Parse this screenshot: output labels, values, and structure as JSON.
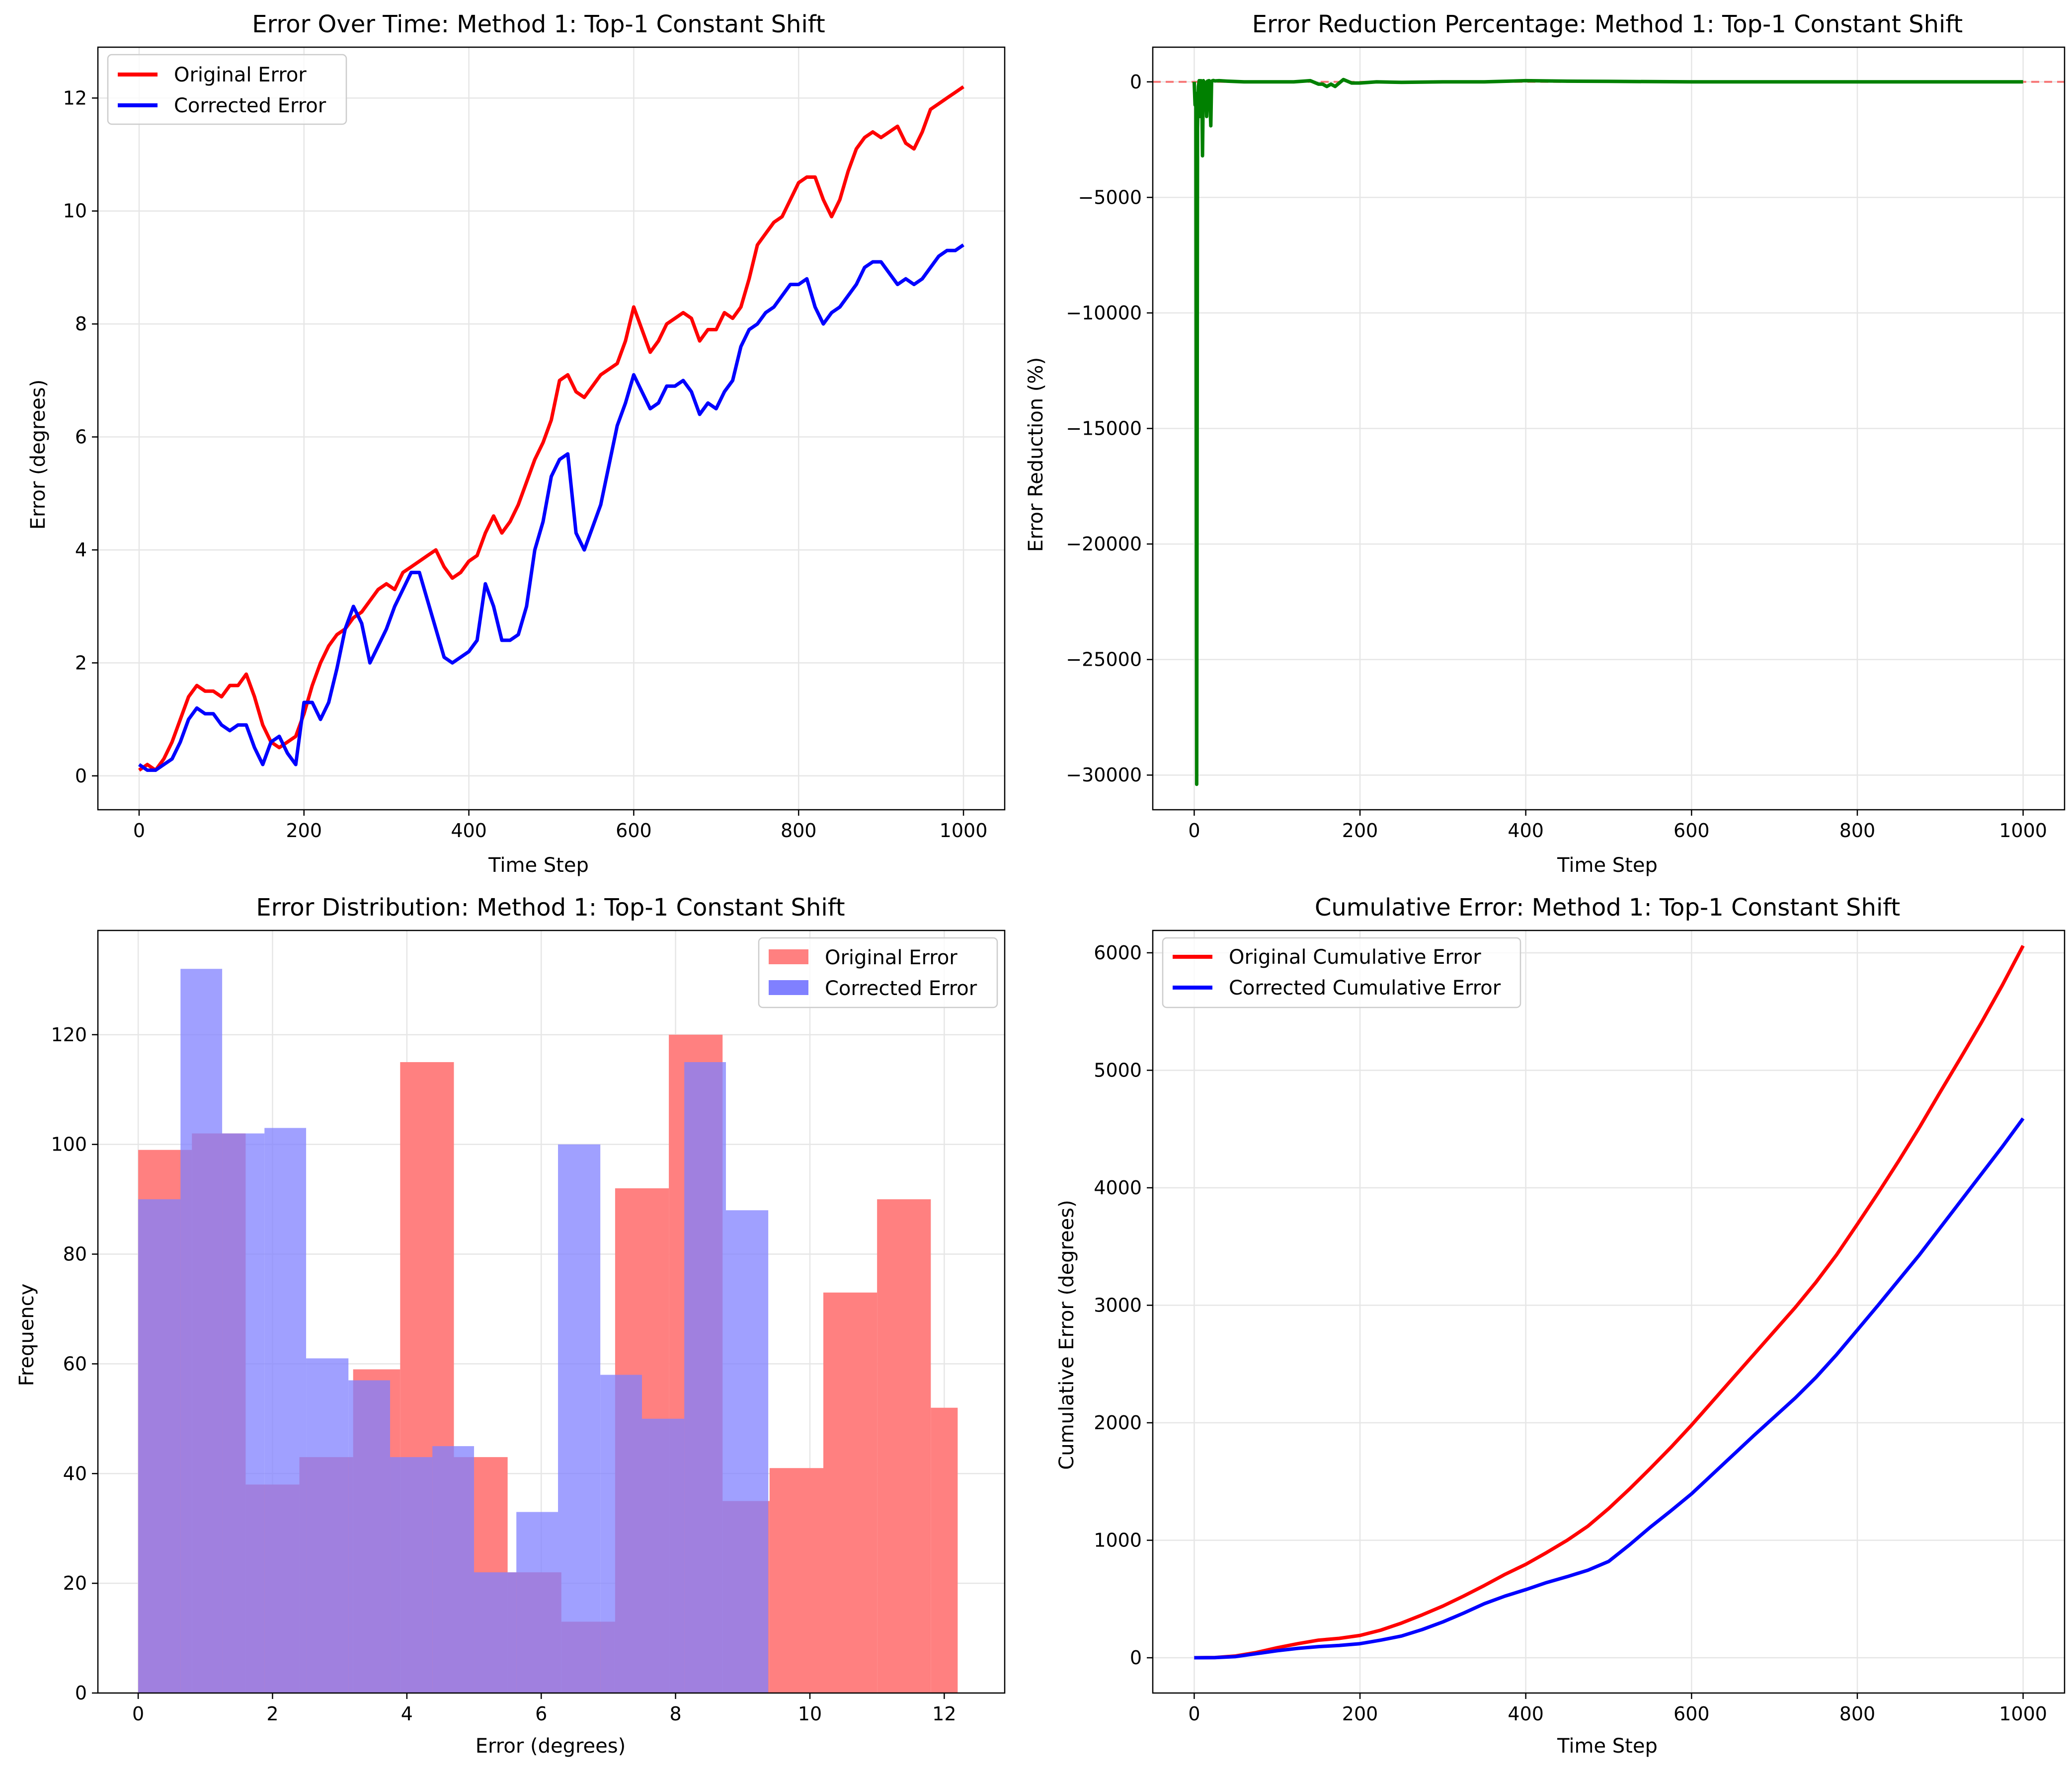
{
  "colors": {
    "original": "#ff0000",
    "corrected": "#0000ff",
    "reduction": "#008000",
    "zero_line": "#ff0000",
    "hist_original": "#ff8080",
    "hist_corrected": "#8080ff",
    "hist_overlap": "#7f3fbf",
    "grid": "#e6e6e6"
  },
  "chart_data": [
    {
      "id": "error_over_time",
      "type": "line",
      "title": "Error Over Time: Method 1: Top-1 Constant Shift",
      "xlabel": "Time Step",
      "ylabel": "Error (degrees)",
      "xlim": [
        -50,
        1050
      ],
      "ylim": [
        -0.6,
        12.9
      ],
      "xticks": [
        0,
        200,
        400,
        600,
        800,
        1000
      ],
      "yticks": [
        0,
        2,
        4,
        6,
        8,
        10,
        12
      ],
      "grid": true,
      "legend": "upper left",
      "series": [
        {
          "name": "Original Error",
          "color": "#ff0000",
          "x": [
            0,
            10,
            20,
            30,
            40,
            50,
            60,
            70,
            80,
            90,
            100,
            110,
            120,
            130,
            140,
            150,
            160,
            170,
            180,
            190,
            200,
            210,
            220,
            230,
            240,
            250,
            260,
            270,
            280,
            290,
            300,
            310,
            320,
            330,
            340,
            350,
            360,
            370,
            380,
            390,
            400,
            410,
            420,
            430,
            440,
            450,
            460,
            470,
            480,
            490,
            500,
            510,
            520,
            530,
            540,
            550,
            560,
            570,
            580,
            590,
            600,
            610,
            620,
            630,
            640,
            650,
            660,
            670,
            680,
            690,
            700,
            710,
            720,
            730,
            740,
            750,
            760,
            770,
            780,
            790,
            800,
            810,
            820,
            830,
            840,
            850,
            860,
            870,
            880,
            890,
            900,
            910,
            920,
            930,
            940,
            950,
            960,
            970,
            980,
            990,
            1000
          ],
          "values": [
            0.1,
            0.2,
            0.1,
            0.3,
            0.6,
            1.0,
            1.4,
            1.6,
            1.5,
            1.5,
            1.4,
            1.6,
            1.6,
            1.8,
            1.4,
            0.9,
            0.6,
            0.5,
            0.6,
            0.7,
            1.1,
            1.6,
            2.0,
            2.3,
            2.5,
            2.6,
            2.8,
            2.9,
            3.1,
            3.3,
            3.4,
            3.3,
            3.6,
            3.7,
            3.8,
            3.9,
            4.0,
            3.7,
            3.5,
            3.6,
            3.8,
            3.9,
            4.3,
            4.6,
            4.3,
            4.5,
            4.8,
            5.2,
            5.6,
            5.9,
            6.3,
            7.0,
            7.1,
            6.8,
            6.7,
            6.9,
            7.1,
            7.2,
            7.3,
            7.7,
            8.3,
            7.9,
            7.5,
            7.7,
            8.0,
            8.1,
            8.2,
            8.1,
            7.7,
            7.9,
            7.9,
            8.2,
            8.1,
            8.3,
            8.8,
            9.4,
            9.6,
            9.8,
            9.9,
            10.2,
            10.5,
            10.6,
            10.6,
            10.2,
            9.9,
            10.2,
            10.7,
            11.1,
            11.3,
            11.4,
            11.3,
            11.4,
            11.5,
            11.2,
            11.1,
            11.4,
            11.8,
            11.9,
            12.0,
            12.1,
            12.2
          ]
        },
        {
          "name": "Corrected Error",
          "color": "#0000ff",
          "x": [
            0,
            10,
            20,
            30,
            40,
            50,
            60,
            70,
            80,
            90,
            100,
            110,
            120,
            130,
            140,
            150,
            160,
            170,
            180,
            190,
            200,
            210,
            220,
            230,
            240,
            250,
            260,
            270,
            280,
            290,
            300,
            310,
            320,
            330,
            340,
            350,
            360,
            370,
            380,
            390,
            400,
            410,
            420,
            430,
            440,
            450,
            460,
            470,
            480,
            490,
            500,
            510,
            520,
            530,
            540,
            550,
            560,
            570,
            580,
            590,
            600,
            610,
            620,
            630,
            640,
            650,
            660,
            670,
            680,
            690,
            700,
            710,
            720,
            730,
            740,
            750,
            760,
            770,
            780,
            790,
            800,
            810,
            820,
            830,
            840,
            850,
            860,
            870,
            880,
            890,
            900,
            910,
            920,
            930,
            940,
            950,
            960,
            970,
            980,
            990,
            1000
          ],
          "values": [
            0.2,
            0.1,
            0.1,
            0.2,
            0.3,
            0.6,
            1.0,
            1.2,
            1.1,
            1.1,
            0.9,
            0.8,
            0.9,
            0.9,
            0.5,
            0.2,
            0.6,
            0.7,
            0.4,
            0.2,
            1.3,
            1.3,
            1.0,
            1.3,
            1.9,
            2.6,
            3.0,
            2.7,
            2.0,
            2.3,
            2.6,
            3.0,
            3.3,
            3.6,
            3.6,
            3.1,
            2.6,
            2.1,
            2.0,
            2.1,
            2.2,
            2.4,
            3.4,
            3.0,
            2.4,
            2.4,
            2.5,
            3.0,
            4.0,
            4.5,
            5.3,
            5.6,
            5.7,
            4.3,
            4.0,
            4.4,
            4.8,
            5.5,
            6.2,
            6.6,
            7.1,
            6.8,
            6.5,
            6.6,
            6.9,
            6.9,
            7.0,
            6.8,
            6.4,
            6.6,
            6.5,
            6.8,
            7.0,
            7.6,
            7.9,
            8.0,
            8.2,
            8.3,
            8.5,
            8.7,
            8.7,
            8.8,
            8.3,
            8.0,
            8.2,
            8.3,
            8.5,
            8.7,
            9.0,
            9.1,
            9.1,
            8.9,
            8.7,
            8.8,
            8.7,
            8.8,
            9.0,
            9.2,
            9.3,
            9.3,
            9.4
          ]
        }
      ]
    },
    {
      "id": "error_reduction",
      "type": "line",
      "title": "Error Reduction Percentage: Method 1: Top-1 Constant Shift",
      "xlabel": "Time Step",
      "ylabel": "Error Reduction (%)",
      "xlim": [
        -50,
        1050
      ],
      "ylim": [
        -31500,
        1500
      ],
      "xticks": [
        0,
        200,
        400,
        600,
        800,
        1000
      ],
      "yticks": [
        0,
        -5000,
        -10000,
        -15000,
        -20000,
        -25000,
        -30000
      ],
      "grid": true,
      "reference_line": 0,
      "series": [
        {
          "color": "#008000",
          "x": [
            0,
            1,
            2,
            3,
            4,
            5,
            6,
            7,
            8,
            9,
            10,
            11,
            12,
            14,
            15,
            16,
            18,
            20,
            21,
            23,
            25,
            30,
            40,
            60,
            80,
            100,
            120,
            140,
            150,
            155,
            160,
            165,
            170,
            175,
            180,
            190,
            200,
            220,
            250,
            300,
            350,
            400,
            450,
            500,
            600,
            700,
            800,
            900,
            1000
          ],
          "values": [
            0,
            -1000,
            -500,
            -30400,
            -2000,
            -200,
            50,
            -1500,
            50,
            30,
            -3200,
            50,
            0,
            -200,
            -1500,
            30,
            50,
            -1900,
            30,
            60,
            40,
            50,
            30,
            0,
            0,
            0,
            0,
            50,
            -100,
            -100,
            -200,
            -100,
            -200,
            -50,
            100,
            -50,
            -50,
            0,
            -20,
            0,
            0,
            50,
            30,
            20,
            0,
            0,
            0,
            0,
            0
          ]
        }
      ]
    },
    {
      "id": "error_distribution",
      "type": "histogram",
      "title": "Error Distribution: Method 1: Top-1 Constant Shift",
      "xlabel": "Error (degrees)",
      "ylabel": "Frequency",
      "xlim": [
        -0.6,
        12.9
      ],
      "ylim": [
        0,
        139
      ],
      "xticks": [
        0,
        2,
        4,
        6,
        8,
        10,
        12
      ],
      "yticks": [
        0,
        20,
        40,
        60,
        80,
        100,
        120
      ],
      "grid": true,
      "legend": "upper right",
      "series": [
        {
          "name": "Original Error",
          "color": "#ff8080",
          "bins": [
            0,
            0.8,
            1.6,
            2.4,
            3.2,
            3.9,
            4.7,
            5.5,
            6.3,
            7.1,
            7.9,
            8.7,
            9.4,
            10.2,
            11.0,
            11.8,
            12.2
          ],
          "counts": [
            99,
            102,
            38,
            43,
            59,
            115,
            43,
            22,
            13,
            92,
            120,
            35,
            41,
            73,
            90,
            52
          ]
        },
        {
          "name": "Corrected Error",
          "color": "#8080ff",
          "bins": [
            0,
            0.63,
            1.25,
            1.88,
            2.5,
            3.13,
            3.75,
            4.38,
            5.0,
            5.63,
            6.25,
            6.88,
            7.5,
            8.13,
            8.75,
            9.38
          ],
          "counts": [
            90,
            132,
            102,
            103,
            61,
            57,
            43,
            45,
            22,
            33,
            100,
            58,
            50,
            115,
            88
          ]
        }
      ]
    },
    {
      "id": "cumulative_error",
      "type": "line",
      "title": "Cumulative Error: Method 1: Top-1 Constant Shift",
      "xlabel": "Time Step",
      "ylabel": "Cumulative Error (degrees)",
      "xlim": [
        -50,
        1050
      ],
      "ylim": [
        -300,
        6190
      ],
      "xticks": [
        0,
        200,
        400,
        600,
        800,
        1000
      ],
      "yticks": [
        0,
        1000,
        2000,
        3000,
        4000,
        5000,
        6000
      ],
      "grid": true,
      "legend": "upper left",
      "series": [
        {
          "name": "Original Cumulative Error",
          "color": "#ff0000",
          "x": [
            0,
            25,
            50,
            75,
            100,
            125,
            150,
            175,
            200,
            225,
            250,
            275,
            300,
            325,
            350,
            375,
            400,
            425,
            450,
            475,
            500,
            525,
            550,
            575,
            600,
            625,
            650,
            675,
            700,
            725,
            750,
            775,
            800,
            825,
            850,
            875,
            900,
            925,
            950,
            975,
            1000
          ],
          "values": [
            0,
            2,
            15,
            45,
            85,
            120,
            150,
            165,
            190,
            235,
            295,
            365,
            440,
            525,
            615,
            710,
            795,
            895,
            1000,
            1120,
            1270,
            1435,
            1610,
            1790,
            1980,
            2180,
            2380,
            2580,
            2780,
            2980,
            3195,
            3430,
            3690,
            3955,
            4230,
            4515,
            4815,
            5110,
            5410,
            5725,
            6060
          ]
        },
        {
          "name": "Corrected Cumulative Error",
          "color": "#0000ff",
          "x": [
            0,
            25,
            50,
            75,
            100,
            125,
            150,
            175,
            200,
            225,
            250,
            275,
            300,
            325,
            350,
            375,
            400,
            425,
            450,
            475,
            500,
            525,
            550,
            575,
            600,
            625,
            650,
            675,
            700,
            725,
            750,
            775,
            800,
            825,
            850,
            875,
            900,
            925,
            950,
            975,
            1000
          ],
          "values": [
            0,
            1,
            10,
            35,
            60,
            80,
            95,
            105,
            120,
            150,
            185,
            240,
            305,
            380,
            460,
            525,
            580,
            640,
            690,
            745,
            820,
            960,
            1110,
            1250,
            1395,
            1560,
            1725,
            1890,
            2050,
            2210,
            2385,
            2580,
            2790,
            3000,
            3215,
            3430,
            3660,
            3890,
            4120,
            4350,
            4590
          ]
        }
      ]
    }
  ]
}
